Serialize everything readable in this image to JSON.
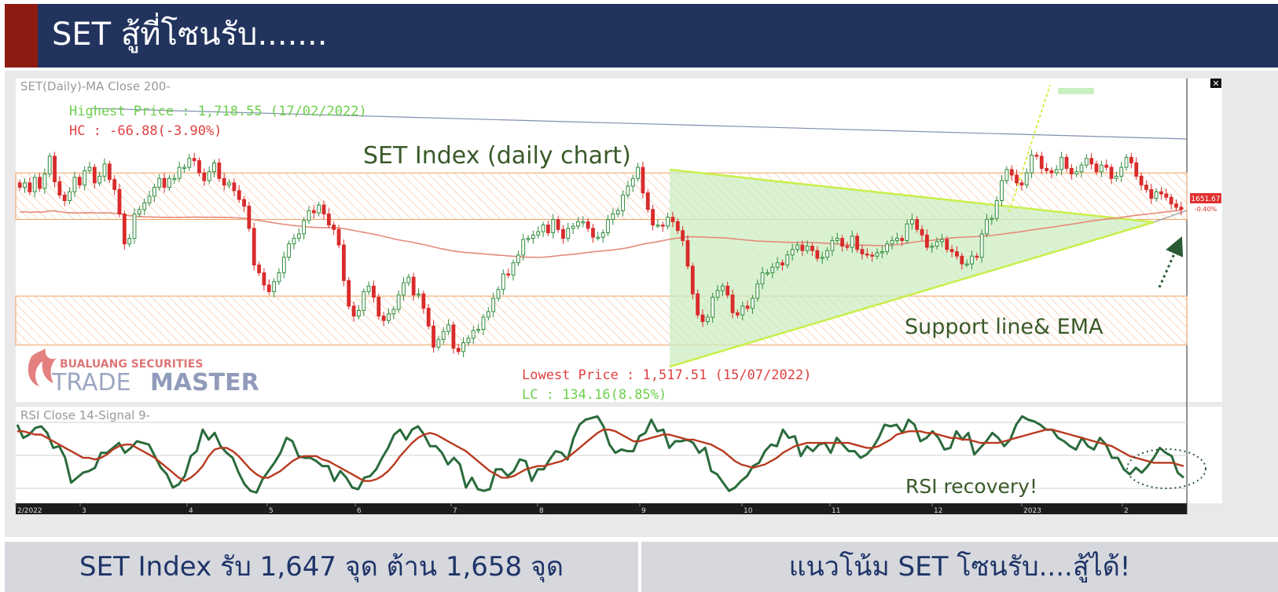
{
  "header": {
    "title": "SET  สู้ที่โซนรับ.......",
    "accent_color": "#8e1b12",
    "bar_color": "#22345e"
  },
  "footer": {
    "left_text": "SET Index รับ 1,647 จุด ต้าน 1,658  จุด",
    "right_text": "แนวโน้ม SET โซนรับ....สู้ได้!"
  },
  "chart_data": [
    {
      "type": "candlestick",
      "indicator_label": "SET(Daily)-MA  Close 200-",
      "title": "SET Index (daily chart)",
      "x_ticks": [
        "2/2022",
        "3",
        "4",
        "5",
        "6",
        "7",
        "8",
        "9",
        "10",
        "11",
        "12",
        "2023",
        "2"
      ],
      "ylim": [
        1480,
        1770
      ],
      "last_price_label": "1651.67",
      "last_change_label": "-0.40%",
      "annotations": {
        "highest": "Highest Price : 1,718.55 (17/02/2022)",
        "hc": "HC : -66.88(-3.90%)",
        "lowest": "Lowest Price : 1,517.51 (15/07/2022)",
        "lc": "LC : 134.16(8.85%)",
        "support": "Support line& EMA"
      },
      "zones": [
        {
          "name": "resistance",
          "from": 1643,
          "to": 1685
        },
        {
          "name": "support",
          "from": 1530,
          "to": 1574
        }
      ],
      "watermark": {
        "brand_small": "BUALUANG SECURITIES",
        "brand_trade": "TRADE",
        "brand_master": "MASTER"
      },
      "colors": {
        "up": "#2e8b3a",
        "down": "#d92b2b",
        "ma": "#e58a7a",
        "zone": "#f4a460",
        "triangle": "#c9ef4a",
        "arrow": "#2a5a33"
      },
      "close_series": [
        1672,
        1676,
        1668,
        1681,
        1671,
        1684,
        1700,
        1677,
        1665,
        1660,
        1668,
        1681,
        1674,
        1687,
        1690,
        1676,
        1682,
        1693,
        1679,
        1670,
        1648,
        1621,
        1626,
        1648,
        1652,
        1658,
        1664,
        1672,
        1680,
        1672,
        1680,
        1680,
        1690,
        1690,
        1698,
        1696,
        1685,
        1678,
        1686,
        1694,
        1680,
        1674,
        1676,
        1669,
        1661,
        1655,
        1635,
        1602,
        1595,
        1584,
        1578,
        1587,
        1595,
        1609,
        1621,
        1626,
        1630,
        1642,
        1651,
        1649,
        1656,
        1648,
        1638,
        1634,
        1620,
        1588,
        1565,
        1556,
        1561,
        1578,
        1583,
        1573,
        1556,
        1552,
        1558,
        1562,
        1575,
        1586,
        1591,
        1575,
        1576,
        1563,
        1547,
        1528,
        1535,
        1542,
        1548,
        1527,
        1524,
        1532,
        1536,
        1543,
        1544,
        1555,
        1560,
        1572,
        1580,
        1594,
        1593,
        1604,
        1611,
        1625,
        1626,
        1629,
        1632,
        1638,
        1631,
        1643,
        1634,
        1626,
        1635,
        1637,
        1641,
        1641,
        1635,
        1627,
        1627,
        1631,
        1643,
        1648,
        1651,
        1665,
        1673,
        1680,
        1690,
        1667,
        1652,
        1638,
        1638,
        1637,
        1645,
        1641,
        1633,
        1624,
        1601,
        1576,
        1557,
        1551,
        1555,
        1573,
        1579,
        1583,
        1575,
        1559,
        1557,
        1565,
        1563,
        1572,
        1585,
        1595,
        1595,
        1600,
        1604,
        1602,
        1611,
        1616,
        1620,
        1615,
        1619,
        1615,
        1608,
        1609,
        1615,
        1624,
        1626,
        1619,
        1618,
        1628,
        1616,
        1612,
        1611,
        1610,
        1613,
        1614,
        1621,
        1624,
        1626,
        1624,
        1639,
        1643,
        1634,
        1629,
        1618,
        1619,
        1623,
        1625,
        1616,
        1614,
        1610,
        1603,
        1603,
        1610,
        1609,
        1630,
        1643,
        1644,
        1660,
        1678,
        1688,
        1683,
        1676,
        1674,
        1685,
        1701,
        1700,
        1689,
        1687,
        1685,
        1688,
        1699,
        1689,
        1684,
        1686,
        1692,
        1698,
        1693,
        1686,
        1692,
        1690,
        1680,
        1682,
        1690,
        1699,
        1694,
        1682,
        1674,
        1670,
        1662,
        1668,
        1666,
        1663,
        1657,
        1654,
        1652
      ]
    },
    {
      "type": "line",
      "indicator_label": "RSI  Close 14-Signal  9-",
      "annotation": "RSI recovery!",
      "ylim": [
        25,
        80
      ],
      "series": [
        {
          "color": "#2a6b3c",
          "values": [
            72,
            64,
            66,
            70,
            71,
            67,
            58,
            59,
            52,
            37,
            40,
            43,
            44,
            46,
            55,
            55,
            58,
            61,
            55,
            58,
            62,
            61,
            60,
            53,
            46,
            42,
            34,
            36,
            41,
            53,
            56,
            69,
            63,
            67,
            59,
            55,
            52,
            43,
            36,
            32,
            31,
            39,
            44,
            49,
            55,
            64,
            62,
            53,
            52,
            52,
            50,
            47,
            47,
            38,
            44,
            40,
            34,
            33,
            40,
            41,
            45,
            52,
            58,
            66,
            69,
            63,
            69,
            71,
            66,
            59,
            59,
            55,
            48,
            52,
            48,
            34,
            40,
            33,
            32,
            33,
            45,
            45,
            41,
            44,
            51,
            50,
            38,
            45,
            45,
            51,
            56,
            55,
            51,
            64,
            72,
            75,
            76,
            77,
            71,
            60,
            55,
            57,
            56,
            56,
            65,
            67,
            75,
            68,
            69,
            58,
            62,
            62,
            63,
            61,
            55,
            58,
            44,
            42,
            37,
            32,
            34,
            38,
            41,
            47,
            49,
            56,
            60,
            59,
            69,
            64,
            65,
            53,
            59,
            56,
            60,
            61,
            55,
            64,
            60,
            56,
            56,
            52,
            54,
            58,
            64,
            72,
            71,
            72,
            67,
            75,
            72,
            62,
            64,
            68,
            64,
            57,
            58,
            68,
            63,
            67,
            54,
            58,
            62,
            67,
            64,
            59,
            63,
            72,
            77,
            75,
            74,
            72,
            69,
            69,
            64,
            62,
            59,
            57,
            64,
            59,
            57,
            64,
            60,
            52,
            52,
            45,
            42,
            46,
            43,
            47,
            52,
            58,
            55,
            53,
            43,
            40
          ]
        },
        {
          "color": "#b83a1f",
          "values": [
            68,
            68,
            67,
            66,
            66,
            64,
            62,
            60,
            58,
            56,
            54,
            52,
            52,
            51,
            52,
            54,
            57,
            59,
            60,
            60,
            58,
            56,
            54,
            52,
            49,
            46,
            43,
            40,
            38,
            40,
            43,
            47,
            53,
            57,
            58,
            58,
            56,
            53,
            49,
            45,
            42,
            40,
            40,
            42,
            44,
            47,
            50,
            52,
            53,
            53,
            53,
            51,
            50,
            48,
            46,
            44,
            42,
            40,
            38,
            38,
            39,
            41,
            44,
            48,
            53,
            57,
            61,
            64,
            66,
            67,
            66,
            64,
            62,
            60,
            58,
            56,
            53,
            50,
            47,
            44,
            42,
            40,
            40,
            41,
            43,
            45,
            46,
            47,
            47,
            48,
            49,
            50,
            52,
            55,
            58,
            61,
            64,
            67,
            69,
            69,
            68,
            66,
            64,
            62,
            62,
            63,
            64,
            65,
            66,
            66,
            65,
            64,
            63,
            63,
            62,
            61,
            60,
            58,
            56,
            53,
            50,
            48,
            47,
            46,
            47,
            48,
            50,
            52,
            55,
            57,
            59,
            60,
            61,
            61,
            61,
            61,
            61,
            61,
            61,
            61,
            60,
            59,
            58,
            58,
            59,
            61,
            63,
            66,
            67,
            68,
            68,
            68,
            67,
            67,
            66,
            65,
            64,
            64,
            63,
            63,
            62,
            61,
            61,
            61,
            61,
            62,
            63,
            64,
            65,
            66,
            67,
            68,
            69,
            69,
            68,
            67,
            66,
            65,
            64,
            63,
            62,
            61,
            60,
            59,
            57,
            55,
            53,
            52,
            51,
            50,
            49,
            49,
            49,
            49,
            48,
            47
          ]
        }
      ]
    }
  ]
}
